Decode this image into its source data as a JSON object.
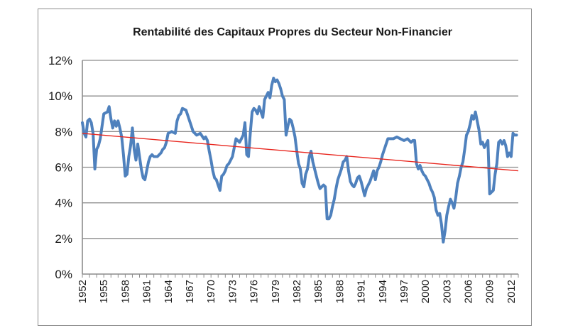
{
  "chart_data": {
    "type": "line",
    "title": "Rentabilité des Capitaux Propres du Secteur Non-Financier",
    "xlabel": "",
    "ylabel": "",
    "xlim": [
      1952,
      2013
    ],
    "ylim": [
      0,
      12
    ],
    "y_ticks": [
      "0%",
      "2%",
      "4%",
      "6%",
      "8%",
      "10%",
      "12%"
    ],
    "x_ticks": [
      "1952",
      "1955",
      "1958",
      "1961",
      "1964",
      "1967",
      "1970",
      "1973",
      "1976",
      "1979",
      "1982",
      "1985",
      "1988",
      "1991",
      "1994",
      "1997",
      "2000",
      "2003",
      "2006",
      "2009",
      "2012"
    ],
    "grid": true,
    "legend": "none",
    "colors": {
      "series": "#4f81bd",
      "trend": "#e8261e",
      "grid": "#8c8c8c",
      "axis": "#8c8c8c",
      "frame": "#8c8c8c"
    },
    "series": [
      {
        "x": [
          1952.0,
          1952.25,
          1952.5,
          1952.75,
          1953.0,
          1953.25,
          1953.5,
          1953.75,
          1954.0,
          1954.25,
          1954.5,
          1954.75,
          1955.0,
          1955.5,
          1955.75,
          1956.0,
          1956.25,
          1956.5,
          1956.75,
          1957.0,
          1957.25,
          1957.5,
          1957.75,
          1958.0,
          1958.25,
          1958.5,
          1958.75,
          1959.0,
          1959.25,
          1959.5,
          1959.75,
          1960.0,
          1960.25,
          1960.5,
          1960.75,
          1961.0,
          1961.25,
          1961.5,
          1961.75,
          1962.0,
          1962.5,
          1963.0,
          1963.25,
          1963.5,
          1963.75,
          1964.0,
          1964.5,
          1965.0,
          1965.25,
          1965.5,
          1965.75,
          1966.0,
          1966.5,
          1967.0,
          1967.5,
          1968.0,
          1968.5,
          1969.0,
          1969.25,
          1969.5,
          1969.75,
          1970.0,
          1970.25,
          1970.5,
          1970.75,
          1971.0,
          1971.25,
          1971.5,
          1971.75,
          1972.0,
          1972.25,
          1972.5,
          1972.75,
          1973.0,
          1973.5,
          1974.0,
          1974.25,
          1974.5,
          1974.75,
          1975.0,
          1975.25,
          1975.5,
          1975.75,
          1976.0,
          1976.25,
          1976.5,
          1976.75,
          1977.0,
          1977.25,
          1977.5,
          1977.75,
          1978.0,
          1978.25,
          1978.5,
          1978.75,
          1979.0,
          1979.25,
          1979.5,
          1979.75,
          1980.0,
          1980.25,
          1980.5,
          1980.75,
          1981.0,
          1981.25,
          1981.5,
          1981.75,
          1982.0,
          1982.25,
          1982.5,
          1982.75,
          1983.0,
          1983.25,
          1983.5,
          1983.75,
          1984.0,
          1984.25,
          1984.5,
          1984.75,
          1985.0,
          1985.25,
          1985.5,
          1985.75,
          1986.0,
          1986.25,
          1986.5,
          1986.75,
          1987.0,
          1987.25,
          1987.5,
          1987.75,
          1988.0,
          1988.25,
          1988.5,
          1988.75,
          1989.0,
          1989.25,
          1989.5,
          1989.75,
          1990.0,
          1990.25,
          1990.5,
          1990.75,
          1991.0,
          1991.25,
          1991.5,
          1991.75,
          1992.0,
          1992.25,
          1992.5,
          1992.75,
          1993.0,
          1993.25,
          1993.5,
          1993.75,
          1994.0,
          1994.25,
          1994.5,
          1994.75,
          1995.0,
          1995.5,
          1996.0,
          1996.5,
          1997.0,
          1997.5,
          1998.0,
          1998.25,
          1998.5,
          1998.75,
          1999.0,
          1999.25,
          1999.5,
          1999.75,
          2000.0,
          2000.25,
          2000.5,
          2000.75,
          2001.0,
          2001.25,
          2001.5,
          2001.75,
          2002.0,
          2002.25,
          2002.5,
          2002.75,
          2003.0,
          2003.25,
          2003.5,
          2003.75,
          2004.0,
          2004.25,
          2004.5,
          2004.75,
          2005.0,
          2005.25,
          2005.5,
          2005.75,
          2006.0,
          2006.25,
          2006.5,
          2006.75,
          2007.0,
          2007.25,
          2007.5,
          2007.75,
          2008.0,
          2008.25,
          2008.5,
          2008.75,
          2009.0,
          2009.25,
          2009.5,
          2009.75,
          2010.0,
          2010.25,
          2010.5,
          2010.75,
          2011.0,
          2011.25,
          2011.5,
          2011.75,
          2012.0,
          2012.25,
          2012.5,
          2012.75
        ],
        "y": [
          8.5,
          7.9,
          7.7,
          8.6,
          8.7,
          8.5,
          7.9,
          5.9,
          7.0,
          7.2,
          7.6,
          8.3,
          9.0,
          9.1,
          9.4,
          8.7,
          8.2,
          8.6,
          8.3,
          8.6,
          8.2,
          7.7,
          6.7,
          5.5,
          5.6,
          6.6,
          7.2,
          8.2,
          7.0,
          6.4,
          7.3,
          6.6,
          5.9,
          5.4,
          5.3,
          5.8,
          6.3,
          6.6,
          6.7,
          6.6,
          6.6,
          6.8,
          7.0,
          7.1,
          7.4,
          7.9,
          8.0,
          7.9,
          8.6,
          8.9,
          9.0,
          9.3,
          9.2,
          8.6,
          8.0,
          7.8,
          7.9,
          7.6,
          7.7,
          7.5,
          6.9,
          6.4,
          5.8,
          5.4,
          5.3,
          5.0,
          4.7,
          5.5,
          5.6,
          5.8,
          6.1,
          6.2,
          6.4,
          6.6,
          7.6,
          7.4,
          7.6,
          7.8,
          8.5,
          6.7,
          6.6,
          7.9,
          9.1,
          9.3,
          9.2,
          9.0,
          9.4,
          9.1,
          8.8,
          9.8,
          10.0,
          10.2,
          9.9,
          10.6,
          11.0,
          10.8,
          10.9,
          10.7,
          10.4,
          10.0,
          9.8,
          7.8,
          8.3,
          8.7,
          8.6,
          8.2,
          7.7,
          6.9,
          6.2,
          5.9,
          5.1,
          4.9,
          5.6,
          5.9,
          6.6,
          6.9,
          6.3,
          5.9,
          5.5,
          5.1,
          4.8,
          4.9,
          5.0,
          4.9,
          3.1,
          3.1,
          3.3,
          3.8,
          4.2,
          4.8,
          5.3,
          5.6,
          5.9,
          6.3,
          6.4,
          6.6,
          5.8,
          5.2,
          5.0,
          4.9,
          5.1,
          5.4,
          5.5,
          5.2,
          4.8,
          4.4,
          4.8,
          5.0,
          5.2,
          5.5,
          5.8,
          5.3,
          5.8,
          6.0,
          6.3,
          6.7,
          7.0,
          7.3,
          7.6,
          7.6,
          7.6,
          7.7,
          7.6,
          7.5,
          7.6,
          7.4,
          7.5,
          7.5,
          6.2,
          5.9,
          6.1,
          5.8,
          5.6,
          5.5,
          5.3,
          5.1,
          4.8,
          4.6,
          4.3,
          3.6,
          3.3,
          3.4,
          2.8,
          1.8,
          2.4,
          3.3,
          3.8,
          4.2,
          4.0,
          3.7,
          4.3,
          5.1,
          5.5,
          6.0,
          6.3,
          7.0,
          7.8,
          8.0,
          8.4,
          8.9,
          8.7,
          9.1,
          8.6,
          8.1,
          7.3,
          7.4,
          7.1,
          7.3,
          7.5,
          4.5,
          4.6,
          4.7,
          5.6,
          6.2,
          7.4,
          7.5,
          7.3,
          7.5,
          7.2,
          6.6,
          6.8,
          6.6,
          7.9,
          7.8,
          7.8
        ]
      },
      {
        "x": [
          1952,
          2013
        ],
        "y": [
          7.9,
          5.8
        ]
      }
    ]
  }
}
